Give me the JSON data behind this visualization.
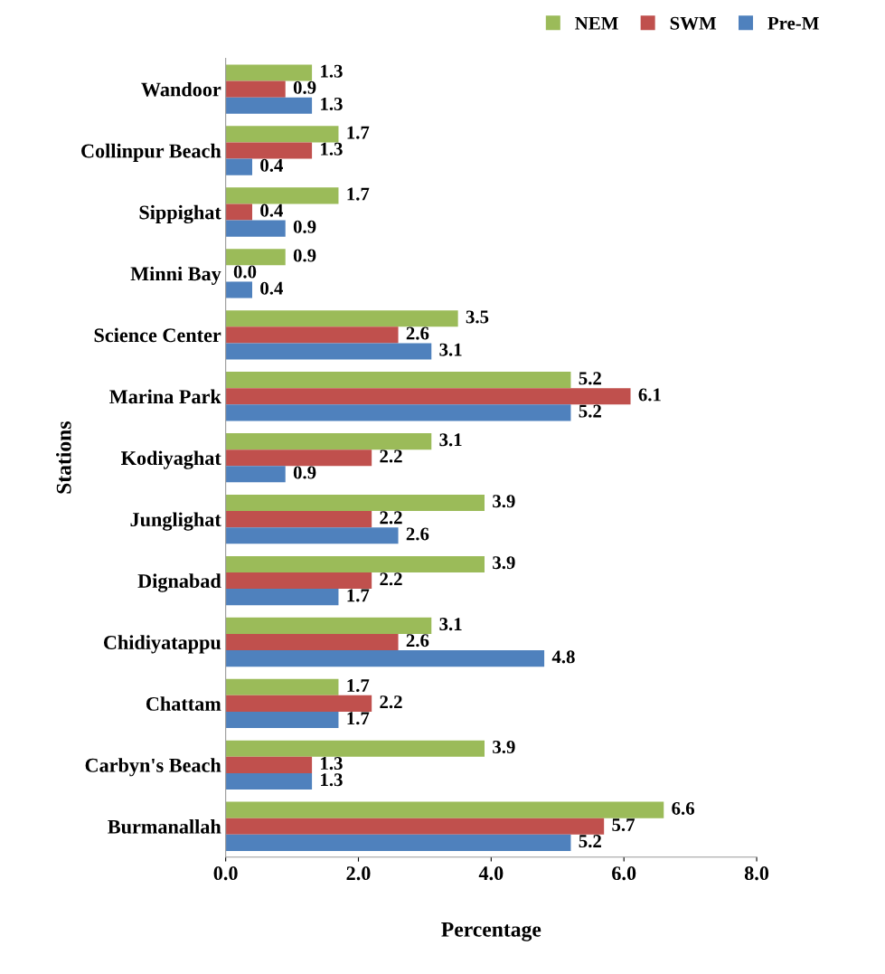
{
  "chart_data": {
    "type": "bar",
    "orientation": "horizontal",
    "xlabel": "Percentage",
    "ylabel": "Stations",
    "categories": [
      "Wandoor",
      "Collinpur Beach",
      "Sippighat",
      "Minni Bay",
      "Science Center",
      "Marina Park",
      "Kodiyaghat",
      "Junglighat",
      "Dignabad",
      "Chidiyatappu",
      "Chattam",
      "Carbyn's Beach",
      "Burmanallah"
    ],
    "series": [
      {
        "name": "NEM",
        "color": "#9bbb59",
        "values": [
          1.3,
          1.7,
          1.7,
          0.9,
          3.5,
          5.2,
          3.1,
          3.9,
          3.9,
          3.1,
          1.7,
          3.9,
          6.6
        ],
        "value_labels": [
          "1.3",
          "1.7",
          "1.7",
          "0.9",
          "3.5",
          "5.2",
          "3.1",
          "3.9",
          "3.9",
          "3.1",
          "1.7",
          "3.9",
          "6.6"
        ]
      },
      {
        "name": "SWM",
        "color": "#c0504d",
        "values": [
          0.9,
          1.3,
          0.4,
          0.0,
          2.6,
          6.1,
          2.2,
          2.2,
          2.2,
          2.6,
          2.2,
          1.3,
          5.7
        ],
        "value_labels": [
          "0.9",
          "1.3",
          "0.4",
          "0.0",
          "2.6",
          "6.1",
          "2.2",
          "2.2",
          "2.2",
          "2.6",
          "2.2",
          "1.3",
          "5.7"
        ]
      },
      {
        "name": "Pre-M",
        "color": "#4f81bd",
        "values": [
          1.3,
          0.4,
          0.9,
          0.4,
          3.1,
          5.2,
          0.9,
          2.6,
          1.7,
          4.8,
          1.7,
          1.3,
          5.2
        ],
        "value_labels": [
          "1.3",
          "0.4",
          "0.9",
          "0.4",
          "3.1",
          "5.2",
          "0.9",
          "2.6",
          "1.7",
          "4.8",
          "1.7",
          "1.3",
          "5.2"
        ]
      }
    ],
    "xlim": [
      0,
      8
    ],
    "xticks": [
      {
        "value": 0,
        "label": "0.0"
      },
      {
        "value": 2,
        "label": "2.0"
      },
      {
        "value": 4,
        "label": "4.0"
      },
      {
        "value": 6,
        "label": "6.0"
      },
      {
        "value": 8,
        "label": "8.0"
      }
    ],
    "grid": false,
    "legend": "top right"
  }
}
